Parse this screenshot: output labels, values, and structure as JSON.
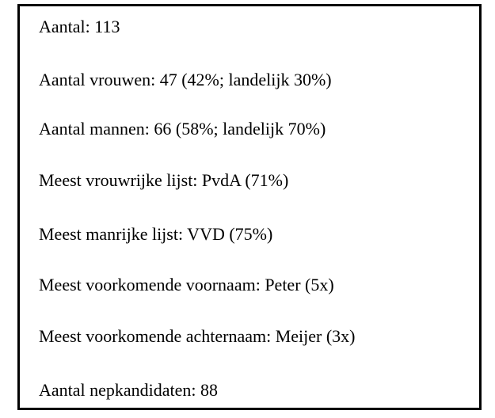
{
  "lines": [
    "Aantal: 113",
    "Aantal vrouwen: 47 (42%; landelijk 30%)",
    "Aantal mannen: 66 (58%; landelijk 70%)",
    "Meest vrouwrijke lijst: PvdA (71%)",
    "Meest manrijke lijst: VVD (75%)",
    "Meest voorkomende voornaam: Peter (5x)",
    "Meest voorkomende achternaam: Meijer (3x)",
    "Aantal nepkandidaten: 88"
  ]
}
